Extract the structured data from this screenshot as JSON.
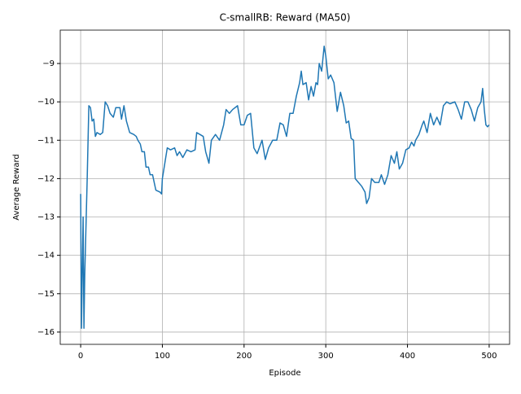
{
  "chart_data": {
    "type": "line",
    "title": "C-smallRB: Reward (MA50)",
    "x_label": "Episode",
    "y_label": "Average Reward",
    "x": [
      0,
      1,
      3,
      4,
      5,
      8,
      10,
      12,
      14,
      16,
      18,
      20,
      24,
      27,
      30,
      33,
      36,
      40,
      43,
      48,
      50,
      53,
      56,
      60,
      65,
      68,
      70,
      73,
      75,
      78,
      80,
      83,
      85,
      88,
      92,
      97,
      99,
      100,
      103,
      106,
      110,
      115,
      118,
      121,
      125,
      130,
      135,
      140,
      142,
      146,
      150,
      153,
      157,
      160,
      165,
      170,
      175,
      178,
      182,
      186,
      192,
      196,
      200,
      204,
      208,
      212,
      216,
      222,
      226,
      230,
      235,
      240,
      244,
      248,
      252,
      256,
      260,
      264,
      268,
      270,
      272,
      276,
      279,
      282,
      285,
      288,
      290,
      292,
      295,
      298,
      300,
      303,
      306,
      310,
      314,
      318,
      322,
      325,
      328,
      331,
      334,
      336,
      340,
      344,
      348,
      350,
      353,
      356,
      360,
      365,
      368,
      372,
      376,
      380,
      384,
      387,
      390,
      394,
      398,
      402,
      405,
      408,
      410,
      414,
      418,
      420,
      424,
      428,
      432,
      436,
      440,
      444,
      448,
      452,
      458,
      462,
      466,
      470,
      474,
      478,
      482,
      486,
      490,
      492,
      494,
      496,
      498,
      500
    ],
    "series": [
      {
        "name": "Reward (MA50)",
        "color": "#1f77b4",
        "values": [
          -12.4,
          -15.9,
          -13.0,
          -15.9,
          -14.5,
          -12.0,
          -10.1,
          -10.15,
          -10.5,
          -10.45,
          -10.9,
          -10.8,
          -10.85,
          -10.8,
          -10.0,
          -10.1,
          -10.3,
          -10.4,
          -10.15,
          -10.15,
          -10.45,
          -10.1,
          -10.5,
          -10.8,
          -10.85,
          -10.9,
          -11.0,
          -11.1,
          -11.3,
          -11.3,
          -11.7,
          -11.7,
          -11.9,
          -11.9,
          -12.3,
          -12.35,
          -12.4,
          -12.0,
          -11.6,
          -11.2,
          -11.25,
          -11.2,
          -11.4,
          -11.3,
          -11.45,
          -11.25,
          -11.3,
          -11.25,
          -10.8,
          -10.85,
          -10.9,
          -11.3,
          -11.6,
          -11.0,
          -10.85,
          -11.0,
          -10.6,
          -10.2,
          -10.3,
          -10.2,
          -10.1,
          -10.6,
          -10.6,
          -10.35,
          -10.3,
          -11.2,
          -11.35,
          -11.0,
          -11.5,
          -11.2,
          -11.0,
          -11.0,
          -10.55,
          -10.6,
          -10.9,
          -10.3,
          -10.3,
          -9.85,
          -9.5,
          -9.2,
          -9.55,
          -9.5,
          -9.95,
          -9.6,
          -9.85,
          -9.5,
          -9.55,
          -9.0,
          -9.2,
          -8.55,
          -8.8,
          -9.4,
          -9.3,
          -9.5,
          -10.25,
          -9.75,
          -10.1,
          -10.55,
          -10.5,
          -10.95,
          -11.0,
          -12.0,
          -12.1,
          -12.2,
          -12.35,
          -12.65,
          -12.5,
          -12.0,
          -12.1,
          -12.1,
          -11.9,
          -12.15,
          -11.9,
          -11.4,
          -11.6,
          -11.3,
          -11.75,
          -11.6,
          -11.25,
          -11.2,
          -11.05,
          -11.15,
          -11.0,
          -10.85,
          -10.6,
          -10.5,
          -10.8,
          -10.3,
          -10.6,
          -10.4,
          -10.6,
          -10.1,
          -10.0,
          -10.05,
          -10.0,
          -10.2,
          -10.45,
          -10.0,
          -10.0,
          -10.2,
          -10.5,
          -10.15,
          -10.0,
          -9.65,
          -10.2,
          -10.6,
          -10.65,
          -10.6
        ]
      }
    ],
    "xlim": [
      -25,
      525
    ],
    "xticks": [
      0,
      100,
      200,
      300,
      400,
      500
    ],
    "ylim": [
      -16.32,
      -8.13
    ],
    "yticks": [
      {
        "value": -16,
        "label": "−16"
      },
      {
        "value": -15,
        "label": "−15"
      },
      {
        "value": -14,
        "label": "−14"
      },
      {
        "value": -13,
        "label": "−13"
      },
      {
        "value": -12,
        "label": "−12"
      },
      {
        "value": -11,
        "label": "−11"
      },
      {
        "value": -10,
        "label": "−10"
      },
      {
        "value": -9,
        "label": "−9"
      }
    ],
    "grid": true
  }
}
